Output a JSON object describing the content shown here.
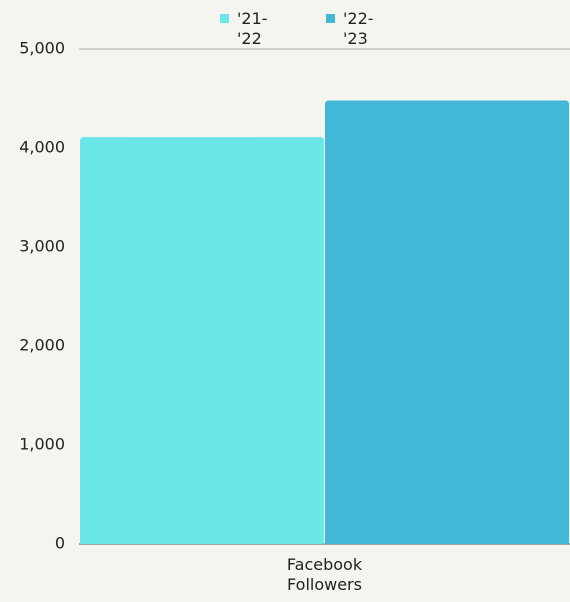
{
  "chart_data": {
    "type": "bar",
    "categories": [
      "Facebook Followers"
    ],
    "series": [
      {
        "name": "'21-'22",
        "color": "#6ae6e8",
        "values": [
          4110
        ]
      },
      {
        "name": "'22-'23",
        "color": "#42b8d6",
        "values": [
          4480
        ]
      }
    ],
    "ylim": [
      0,
      5000
    ],
    "yticks": [
      0,
      {
        "value": 1000,
        "label": "1,000"
      },
      {
        "value": 2000,
        "label": "2,000"
      },
      {
        "value": 3000,
        "label": "3,000"
      },
      {
        "value": 4000,
        "label": "4,000"
      },
      {
        "value": 5000,
        "label": "5,000"
      }
    ],
    "grid": false
  }
}
